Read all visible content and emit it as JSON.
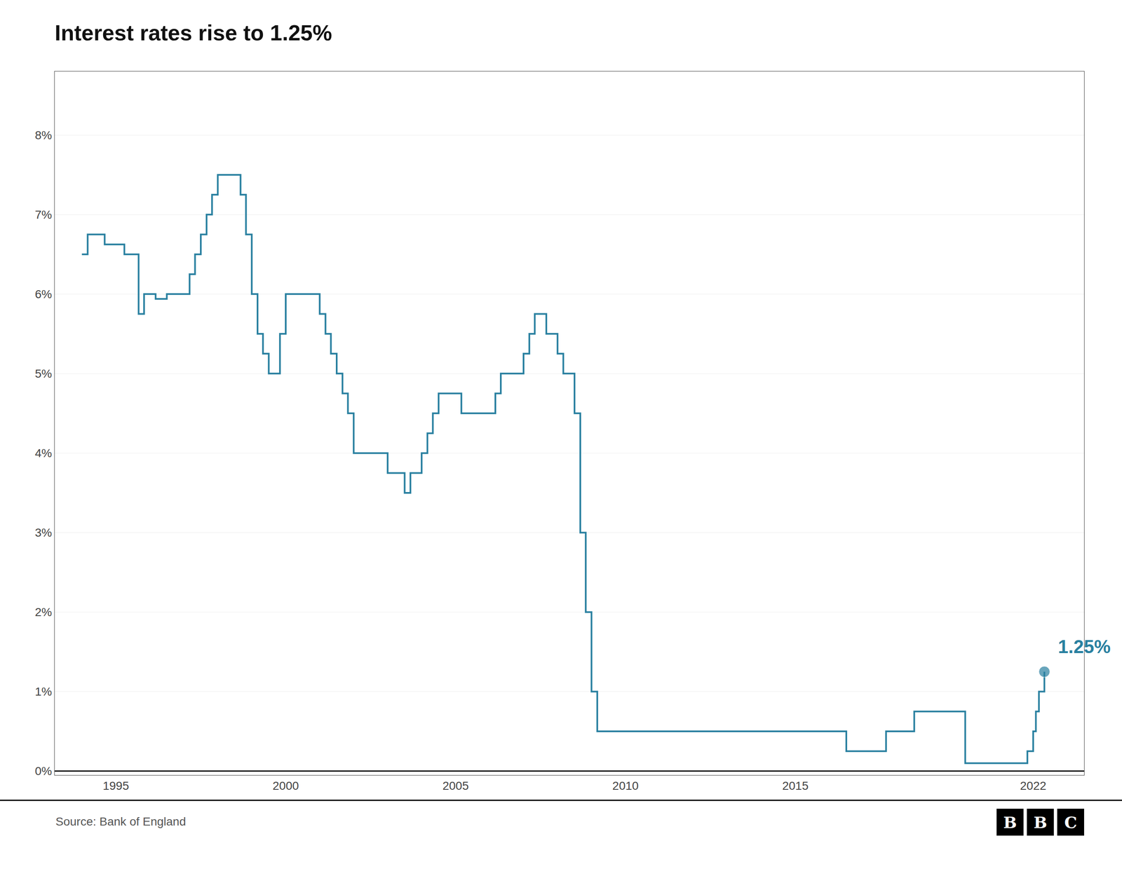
{
  "chart_data": {
    "type": "line",
    "line_style": "step",
    "marker": "circle",
    "title": "Interest rates rise to 1.25%",
    "source": "Source: Bank of England",
    "logo": "BBC",
    "color": "#2980a0",
    "grid": "y",
    "x": [
      1994.0,
      1994.17,
      1994.5,
      1994.67,
      1995.0,
      1995.25,
      1995.67,
      1995.83,
      1996.0,
      1996.17,
      1996.5,
      1997.0,
      1997.17,
      1997.33,
      1997.5,
      1997.67,
      1997.83,
      1998.0,
      1998.25,
      1998.5,
      1998.67,
      1998.83,
      1999.0,
      1999.17,
      1999.33,
      1999.5,
      1999.83,
      2000.0,
      2000.25,
      2000.5,
      2000.75,
      2001.0,
      2001.17,
      2001.33,
      2001.5,
      2001.67,
      2001.83,
      2002.0,
      2002.25,
      2002.5,
      2002.75,
      2003.0,
      2003.25,
      2003.5,
      2003.67,
      2004.0,
      2004.17,
      2004.33,
      2004.5,
      2004.75,
      2005.0,
      2005.17,
      2005.33,
      2005.5,
      2005.75,
      2006.0,
      2006.17,
      2006.33,
      2006.5,
      2006.75,
      2007.0,
      2007.17,
      2007.33,
      2007.5,
      2007.67,
      2007.83,
      2008.0,
      2008.17,
      2008.33,
      2008.5,
      2008.67,
      2008.83,
      2009.0,
      2009.17,
      2009.5,
      2009.75,
      2010.0,
      2011.0,
      2012.0,
      2013.0,
      2014.0,
      2015.0,
      2016.0,
      2016.5,
      2016.75,
      2017.0,
      2017.25,
      2017.67,
      2017.75,
      2018.0,
      2018.5,
      2018.75,
      2019.0,
      2019.5,
      2019.75,
      2020.0,
      2020.25,
      2020.5,
      2020.75,
      2021.0,
      2021.25,
      2021.5,
      2021.75,
      2021.83,
      2022.0,
      2022.08,
      2022.17,
      2022.33
    ],
    "values": [
      6.5,
      6.75,
      6.75,
      6.625,
      6.625,
      6.5,
      5.75,
      6.0,
      6.0,
      5.94,
      6.0,
      6.0,
      6.25,
      6.5,
      6.75,
      7.0,
      7.25,
      7.5,
      7.5,
      7.5,
      7.25,
      6.75,
      6.0,
      5.5,
      5.25,
      5.0,
      5.5,
      6.0,
      6.0,
      6.0,
      6.0,
      5.75,
      5.5,
      5.25,
      5.0,
      4.75,
      4.5,
      4.0,
      4.0,
      4.0,
      4.0,
      3.75,
      3.75,
      3.5,
      3.75,
      4.0,
      4.25,
      4.5,
      4.75,
      4.75,
      4.75,
      4.5,
      4.5,
      4.5,
      4.5,
      4.5,
      4.75,
      5.0,
      5.0,
      5.0,
      5.25,
      5.5,
      5.75,
      5.75,
      5.5,
      5.5,
      5.25,
      5.0,
      5.0,
      4.5,
      3.0,
      2.0,
      1.0,
      0.5,
      0.5,
      0.5,
      0.5,
      0.5,
      0.5,
      0.5,
      0.5,
      0.5,
      0.5,
      0.25,
      0.25,
      0.25,
      0.25,
      0.5,
      0.5,
      0.5,
      0.75,
      0.75,
      0.75,
      0.75,
      0.75,
      0.1,
      0.1,
      0.1,
      0.1,
      0.1,
      0.1,
      0.1,
      0.1,
      0.25,
      0.5,
      0.75,
      1.0,
      1.25
    ],
    "xlim": [
      1993.2,
      2023.5
    ],
    "xticks": [
      1995,
      2000,
      2005,
      2010,
      2015,
      2022
    ],
    "ylim": [
      -0.05,
      8.8
    ],
    "yticks": [
      {
        "value": 0,
        "label": "0%"
      },
      {
        "value": 1,
        "label": "1%"
      },
      {
        "value": 2,
        "label": "2%"
      },
      {
        "value": 3,
        "label": "3%"
      },
      {
        "value": 4,
        "label": "4%"
      },
      {
        "value": 5,
        "label": "5%"
      },
      {
        "value": 6,
        "label": "6%"
      },
      {
        "value": 7,
        "label": "7%"
      },
      {
        "value": 8,
        "label": "8%"
      }
    ],
    "annotations": [
      {
        "text": "1.25%",
        "x": 2022.33,
        "y": 1.25,
        "color": "#2980a0"
      }
    ]
  }
}
